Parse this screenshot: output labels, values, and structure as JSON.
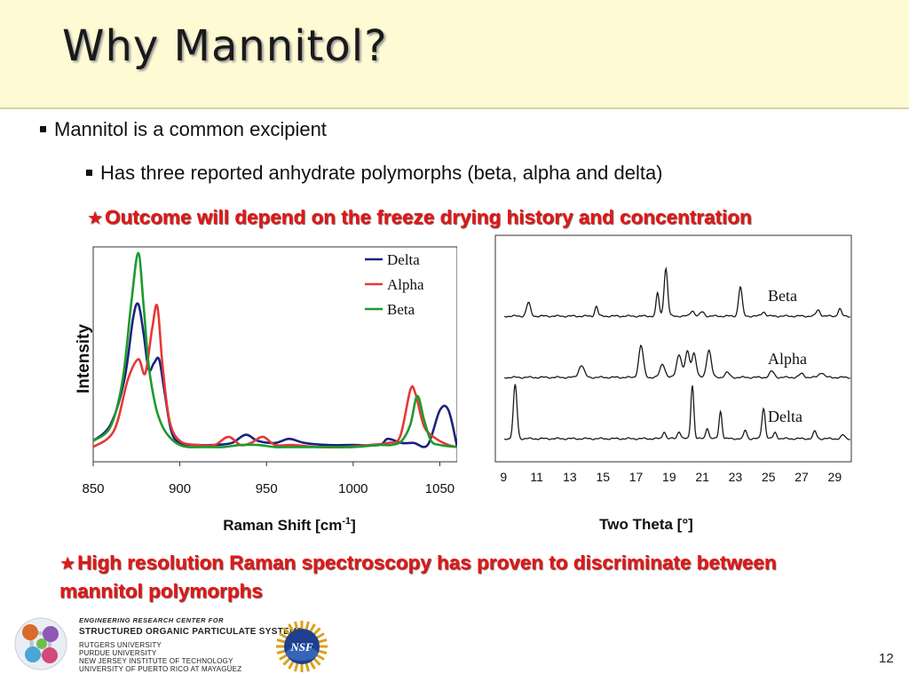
{
  "slide": {
    "title": "Why Mannitol?",
    "bullet1": "Mannitol is a common excipient",
    "bullet2": "Has three reported anhydrate polymorphs (beta, alpha and delta)",
    "star1": "Outcome will depend on the freeze drying history and concentration",
    "star2": "High resolution Raman spectroscopy has proven to discriminate between mannitol polymorphs",
    "star_glyph": "★",
    "page_number": "12"
  },
  "footer": {
    "center_header": "ENGINEERING RESEARCH CENTER FOR",
    "center_name": "STRUCTURED ORGANIC PARTICULATE SYSTEMS",
    "universities": [
      "RUTGERS UNIVERSITY",
      "PURDUE UNIVERSITY",
      "NEW JERSEY INSTITUTE OF TECHNOLOGY",
      "UNIVERSITY OF PUERTO RICO AT MAYAGÜEZ"
    ],
    "nsf_label": "NSF"
  },
  "chart_data": [
    {
      "type": "line",
      "xlabel": "Raman Shift [cm-1]",
      "ylabel": "Intensity",
      "xlim": [
        850,
        1060
      ],
      "xticks": [
        850,
        900,
        950,
        1000,
        1050
      ],
      "y_tick_labels": false,
      "legend_position": "top-right",
      "series": [
        {
          "name": "Delta",
          "color": "#1a237e",
          "x": [
            850,
            860,
            868,
            873,
            876,
            879,
            882,
            885,
            888,
            891,
            895,
            900,
            910,
            920,
            930,
            938,
            945,
            955,
            963,
            972,
            985,
            1000,
            1015,
            1020,
            1028,
            1035,
            1043,
            1050,
            1055,
            1060
          ],
          "y": [
            0.05,
            0.13,
            0.35,
            0.65,
            0.72,
            0.58,
            0.4,
            0.43,
            0.45,
            0.3,
            0.1,
            0.04,
            0.03,
            0.03,
            0.04,
            0.08,
            0.05,
            0.04,
            0.06,
            0.04,
            0.03,
            0.03,
            0.03,
            0.06,
            0.04,
            0.04,
            0.03,
            0.2,
            0.2,
            0.02
          ]
        },
        {
          "name": "Alpha",
          "color": "#e53935",
          "x": [
            850,
            862,
            870,
            876,
            880,
            884,
            887,
            890,
            894,
            900,
            910,
            920,
            928,
            935,
            941,
            948,
            955,
            965,
            980,
            995,
            1010,
            1020,
            1027,
            1033,
            1036,
            1041,
            1048,
            1055,
            1060
          ],
          "y": [
            0.02,
            0.1,
            0.35,
            0.45,
            0.38,
            0.6,
            0.71,
            0.42,
            0.15,
            0.05,
            0.03,
            0.03,
            0.07,
            0.03,
            0.04,
            0.07,
            0.03,
            0.03,
            0.02,
            0.02,
            0.03,
            0.04,
            0.07,
            0.3,
            0.28,
            0.12,
            0.06,
            0.03,
            0.02
          ]
        },
        {
          "name": "Beta",
          "color": "#1e9a2e",
          "x": [
            850,
            860,
            867,
            872,
            876,
            879,
            882,
            886,
            890,
            895,
            900,
            905,
            915,
            925,
            935,
            945,
            955,
            965,
            980,
            1000,
            1015,
            1022,
            1028,
            1033,
            1037,
            1041,
            1045,
            1050,
            1060
          ],
          "y": [
            0.05,
            0.12,
            0.35,
            0.73,
            0.97,
            0.72,
            0.42,
            0.22,
            0.12,
            0.06,
            0.03,
            0.02,
            0.02,
            0.02,
            0.03,
            0.03,
            0.02,
            0.02,
            0.02,
            0.02,
            0.03,
            0.03,
            0.05,
            0.13,
            0.27,
            0.15,
            0.05,
            0.03,
            0.02
          ]
        }
      ]
    },
    {
      "type": "line",
      "xlabel": "Two Theta [°]",
      "xlim": [
        8.5,
        30
      ],
      "xticks": [
        9,
        11,
        13,
        15,
        17,
        19,
        21,
        23,
        25,
        27,
        29
      ],
      "series_labels_position": "inline-right",
      "series": [
        {
          "name": "Beta",
          "color": "#1a1a1a",
          "offset": 2.0,
          "peaks": [
            [
              10.5,
              0.22,
              0.12
            ],
            [
              14.6,
              0.16,
              0.09
            ],
            [
              18.3,
              0.38,
              0.09
            ],
            [
              18.8,
              0.78,
              0.11
            ],
            [
              20.4,
              0.09,
              0.12
            ],
            [
              21.0,
              0.07,
              0.12
            ],
            [
              23.3,
              0.48,
              0.11
            ],
            [
              24.7,
              0.07,
              0.12
            ],
            [
              28.0,
              0.1,
              0.12
            ],
            [
              29.3,
              0.12,
              0.1
            ]
          ]
        },
        {
          "name": "Alpha",
          "color": "#1a1a1a",
          "offset": 1.0,
          "peaks": [
            [
              13.7,
              0.2,
              0.16
            ],
            [
              17.3,
              0.52,
              0.14
            ],
            [
              18.6,
              0.22,
              0.15
            ],
            [
              19.6,
              0.38,
              0.15
            ],
            [
              20.1,
              0.42,
              0.13
            ],
            [
              20.5,
              0.4,
              0.13
            ],
            [
              21.4,
              0.45,
              0.14
            ],
            [
              22.5,
              0.08,
              0.14
            ],
            [
              25.2,
              0.1,
              0.14
            ],
            [
              27.0,
              0.06,
              0.14
            ],
            [
              28.2,
              0.08,
              0.15
            ]
          ]
        },
        {
          "name": "Delta",
          "color": "#1a1a1a",
          "offset": 0.0,
          "peaks": [
            [
              9.7,
              0.88,
              0.11
            ],
            [
              18.7,
              0.12,
              0.09
            ],
            [
              19.6,
              0.12,
              0.1
            ],
            [
              20.4,
              0.88,
              0.09
            ],
            [
              21.3,
              0.18,
              0.09
            ],
            [
              22.1,
              0.45,
              0.09
            ],
            [
              23.6,
              0.14,
              0.09
            ],
            [
              24.7,
              0.5,
              0.1
            ],
            [
              25.4,
              0.1,
              0.1
            ],
            [
              27.8,
              0.12,
              0.1
            ],
            [
              29.5,
              0.06,
              0.1
            ]
          ]
        }
      ]
    }
  ]
}
